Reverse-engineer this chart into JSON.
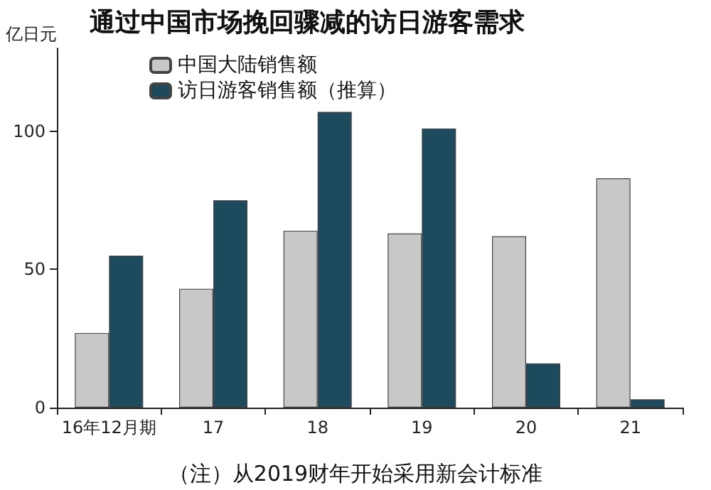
{
  "chart_data": {
    "type": "bar",
    "title": "通过中国市场挽回骤减的访日游客需求",
    "ylabel": "亿日元",
    "categories": [
      "16年12月期",
      "17",
      "18",
      "19",
      "20",
      "21"
    ],
    "series": [
      {
        "name": "中国大陆销售额",
        "color": "#c8c8c8",
        "values": [
          27,
          43,
          64,
          63,
          62,
          83
        ]
      },
      {
        "name": "访日游客销售额（推算）",
        "color": "#1e4a5e",
        "values": [
          55,
          75,
          107,
          101,
          16,
          3
        ]
      }
    ],
    "ylim": [
      0,
      130
    ],
    "yticks": [
      0,
      50,
      100
    ],
    "grid": false,
    "legend": "top left",
    "annotations": [
      "（注）从2019财年开始采用新会计标准"
    ]
  }
}
